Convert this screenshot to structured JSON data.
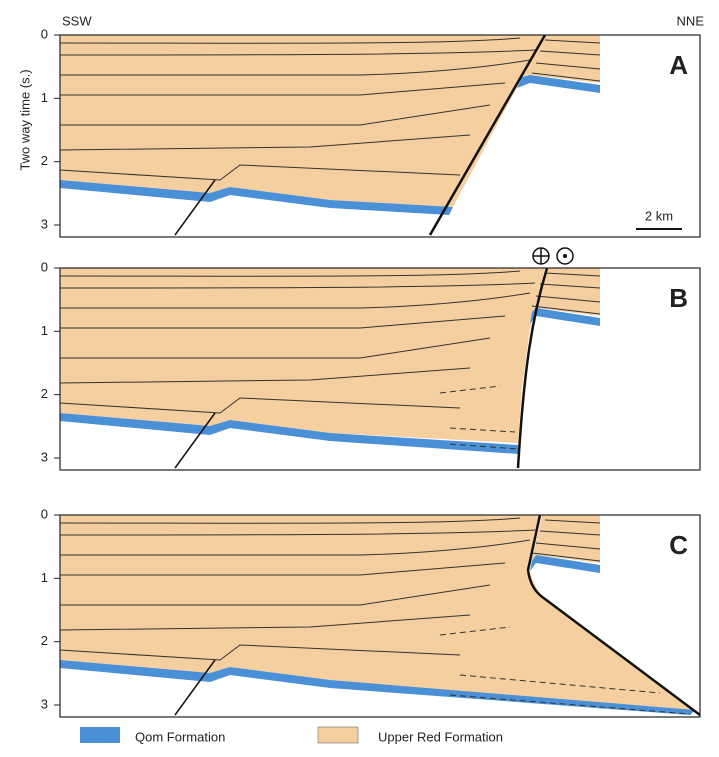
{
  "header": {
    "left": "SSW",
    "right": "NNE"
  },
  "y_axis": {
    "label": "Two way time (s.)"
  },
  "panels": [
    {
      "label": "A",
      "ticks": [
        0,
        1,
        2,
        3
      ]
    },
    {
      "label": "B",
      "ticks": [
        0,
        1,
        2,
        3
      ]
    },
    {
      "label": "C",
      "ticks": [
        0,
        1,
        2,
        3
      ]
    }
  ],
  "scale_bar": "2 km",
  "legend": [
    {
      "label": "Qom Formation",
      "color": "#4a90d6"
    },
    {
      "label": "Upper Red Formation",
      "color": "#f6cfa0"
    }
  ]
}
